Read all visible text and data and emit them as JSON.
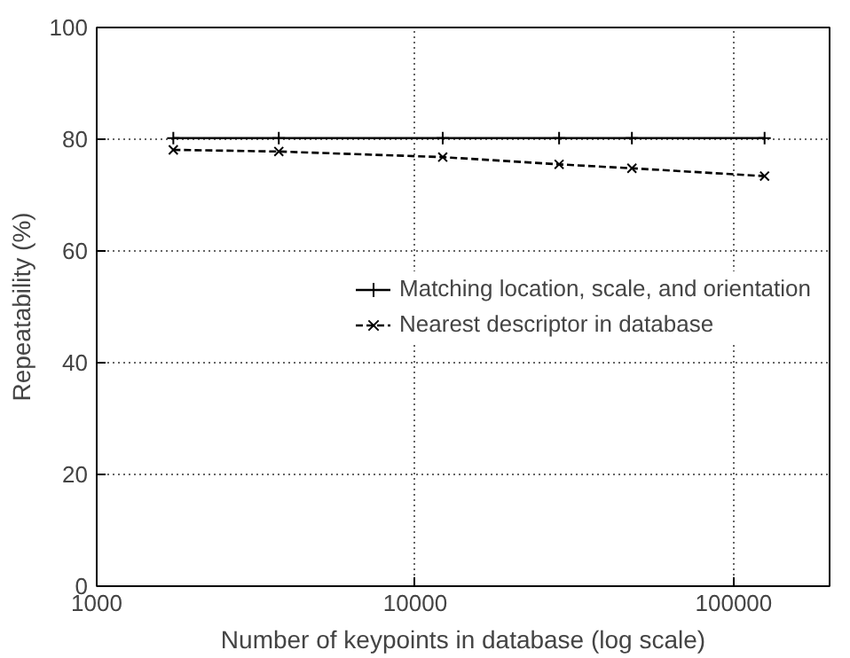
{
  "chart_data": {
    "type": "line",
    "xlabel": "Number of keypoints in database (log scale)",
    "ylabel": "Repeatability (%)",
    "x": [
      1740,
      3730,
      12200,
      28300,
      47900,
      125000
    ],
    "series": [
      {
        "name": "Matching location, scale, and orientation",
        "color": "#000000",
        "values": [
          80.2,
          80.2,
          80.2,
          80.2,
          80.2,
          80.2
        ],
        "marker": "cross",
        "line_style": "solid"
      },
      {
        "name": "Nearest descriptor in database",
        "color": "#000000",
        "values": [
          78.1,
          77.8,
          76.8,
          75.5,
          74.8,
          73.4
        ],
        "marker": "cross",
        "line_style": "dashed"
      }
    ],
    "log": "x",
    "xlim": [
      1000,
      200000
    ],
    "xticks": [
      1000,
      10000,
      100000
    ],
    "ylim": [
      0,
      100
    ],
    "yticks": [
      0,
      20,
      40,
      60,
      80,
      100
    ],
    "grid": true,
    "legend": "right"
  }
}
